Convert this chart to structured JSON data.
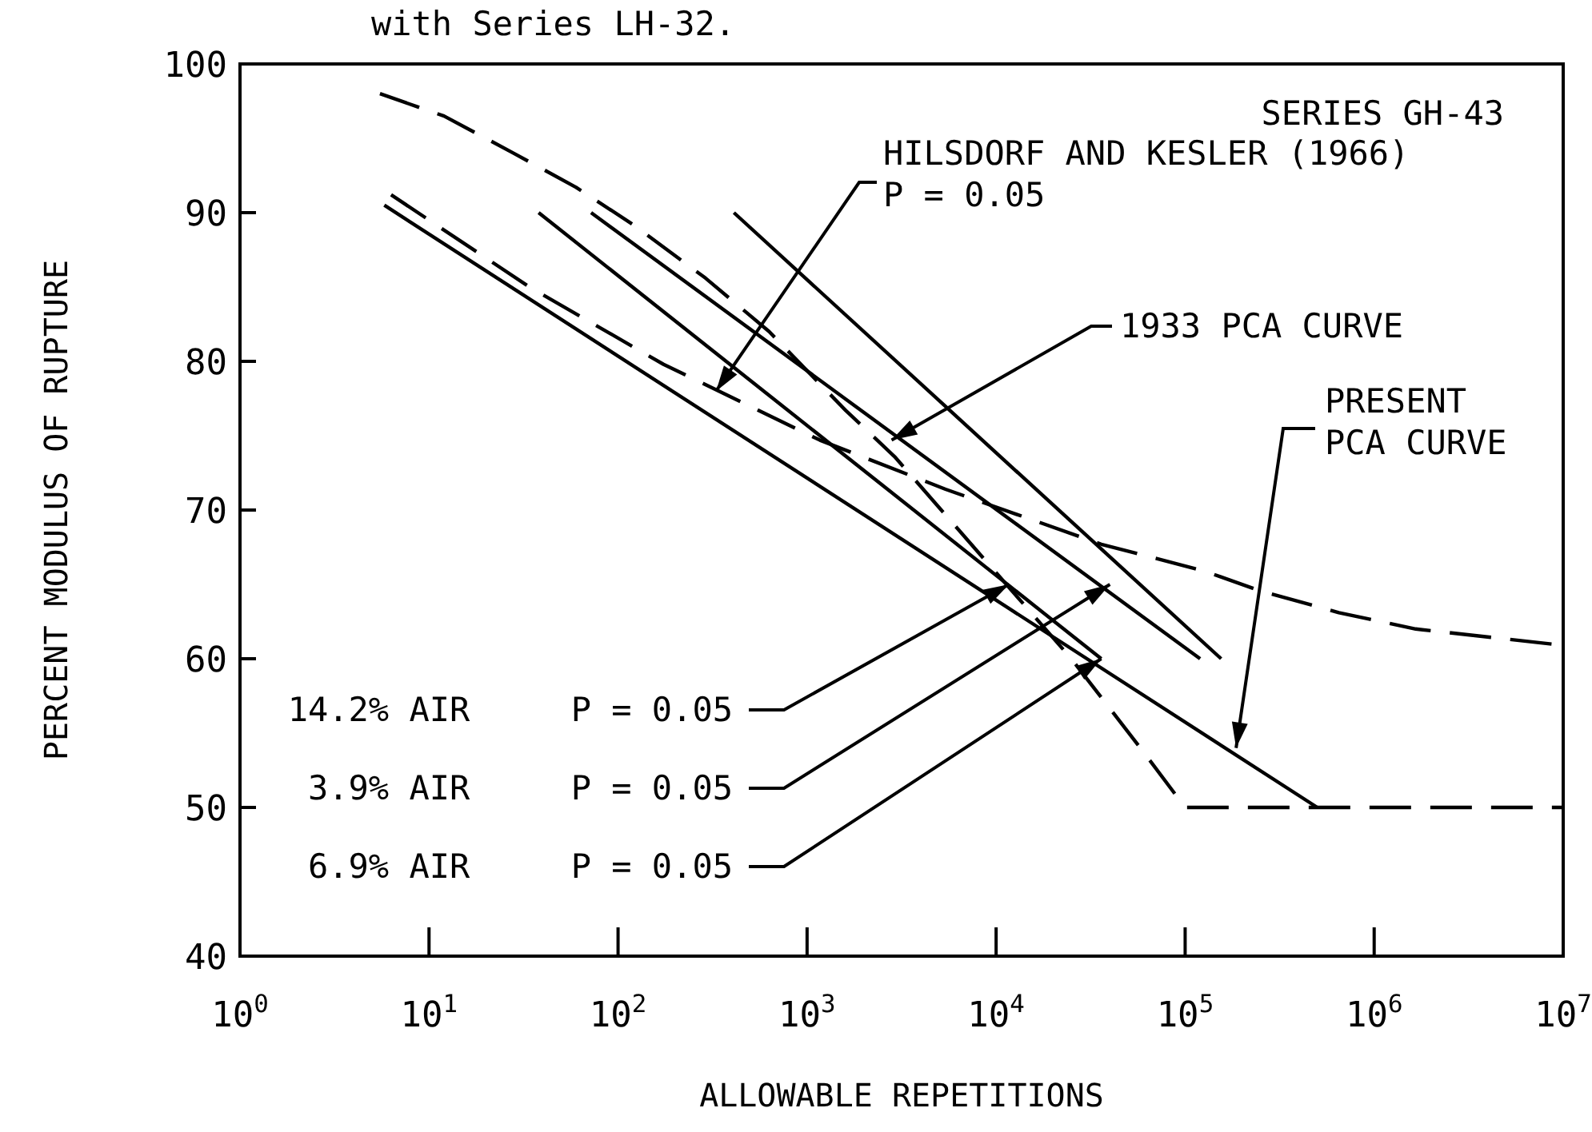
{
  "chart_data": {
    "type": "line",
    "xlabel": "ALLOWABLE REPETITIONS",
    "ylabel": "PERCENT MODULUS OF RUPTURE",
    "log": "x",
    "xlim": [
      1,
      10000000
    ],
    "ylim": [
      40,
      100
    ],
    "xticks": [
      {
        "value": 1,
        "label": "10$^{0}$"
      },
      {
        "value": 10,
        "label": "10$^{1}$"
      },
      {
        "value": 100,
        "label": "10$^{2}$"
      },
      {
        "value": 1000,
        "label": "10$^{3}$"
      },
      {
        "value": 10000,
        "label": "10$^{4}$"
      },
      {
        "value": 100000,
        "label": "10$^{5}$"
      },
      {
        "value": 1000000,
        "label": "10$^{6}$"
      },
      {
        "value": 10000000,
        "label": "10$^{7}$"
      }
    ],
    "yticks": [
      40,
      50,
      60,
      70,
      80,
      90,
      100
    ],
    "series": [
      {
        "color": "#000000",
        "line_style": "dashed",
        "x": [
          5.5,
          12,
          28,
          60,
          120,
          290,
          630,
          1600,
          2900,
          25000,
          58000,
          100000,
          10000000
        ],
        "values": [
          98,
          96.5,
          94,
          91.7,
          89.2,
          85.6,
          82,
          76.7,
          73.6,
          60,
          54,
          50,
          50
        ]
      },
      {
        "color": "#000000",
        "line_style": "dashed",
        "x": [
          6.3,
          34,
          174,
          1170,
          5400,
          36000,
          126000,
          245000,
          650000,
          1660000,
          10000000
        ],
        "values": [
          91.2,
          85,
          79.8,
          74.7,
          71.4,
          67.7,
          65.9,
          64.6,
          63.1,
          62,
          60.9
        ]
      },
      {
        "color": "#000000",
        "line_style": "solid",
        "x": [
          5.8,
          500000
        ],
        "values": [
          90.5,
          50
        ]
      },
      {
        "color": "#000000",
        "line_style": "solid",
        "x": [
          38,
          36000
        ],
        "values": [
          90,
          60
        ]
      },
      {
        "color": "#000000",
        "line_style": "solid",
        "x": [
          72,
          120000
        ],
        "values": [
          90,
          60
        ]
      },
      {
        "color": "#000000",
        "line_style": "solid",
        "x": [
          410,
          155000
        ],
        "values": [
          90,
          60
        ]
      }
    ],
    "annotations": [
      "with Series LH-32.",
      "SERIES GH-43",
      {
        "text": "HILSDORF AND KESLER (1966)\nP = 0.05",
        "x": 330,
        "y": 78
      },
      {
        "text": "1933 PCA CURVE",
        "x": 2800,
        "y": 74.7
      },
      {
        "text": "PRESENT\nPCA CURVE",
        "x": 186000,
        "y": 54
      },
      {
        "text": "14.2% AIR     P = 0.05",
        "x": 11700,
        "y": 65
      },
      {
        "text": "3.9% AIR     P = 0.05",
        "x": 40000,
        "y": 65
      },
      {
        "text": "6.9% AIR     P = 0.05",
        "x": 36000,
        "y": 60
      }
    ]
  }
}
